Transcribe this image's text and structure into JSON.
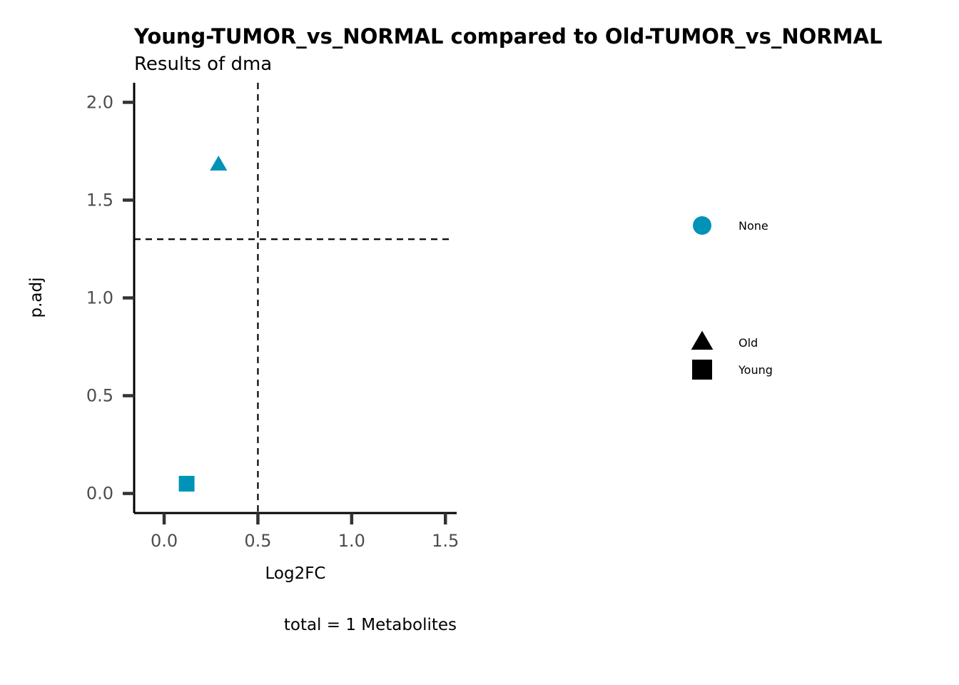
{
  "chart_data": {
    "type": "scatter",
    "title": "Young-TUMOR_vs_NORMAL compared to Old-TUMOR_vs_NORMAL",
    "subtitle": "Results of dma",
    "xlabel": "Log2FC",
    "ylabel": "p.adj",
    "caption": "total = 1 Metabolites",
    "xlim": [
      -0.16,
      1.56
    ],
    "ylim": [
      -0.1,
      2.1
    ],
    "x_ticks": [
      0.0,
      0.5,
      1.0,
      1.5
    ],
    "x_tick_labels": [
      "0.0",
      "0.5",
      "1.0",
      "1.5"
    ],
    "y_ticks": [
      0.0,
      0.5,
      1.0,
      1.5,
      2.0
    ],
    "y_tick_labels": [
      "0.0",
      "0.5",
      "1.0",
      "1.5",
      "2.0"
    ],
    "reference_lines": {
      "vertical_x": 0.5,
      "horizontal_y": 1.3
    },
    "grid": false,
    "point_color": "#0093b8",
    "points": [
      {
        "x": 0.29,
        "y": 1.68,
        "shape": "triangle",
        "group": "Old",
        "color_group": "None"
      },
      {
        "x": 0.12,
        "y": 0.05,
        "shape": "square",
        "group": "Young",
        "color_group": "None"
      }
    ],
    "legend": {
      "position": "right",
      "color_entries": [
        {
          "label": "None",
          "color": "#0093b8",
          "shape": "circle"
        }
      ],
      "shape_entries": [
        {
          "label": "Old",
          "shape": "triangle"
        },
        {
          "label": "Young",
          "shape": "square"
        }
      ]
    }
  }
}
